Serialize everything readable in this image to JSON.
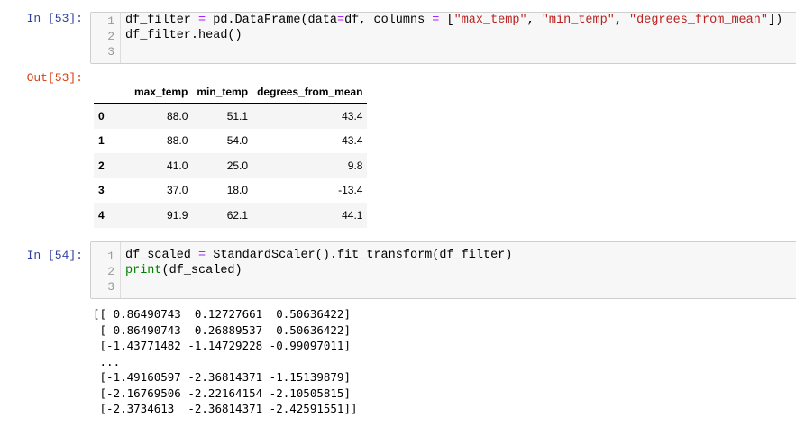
{
  "cells": [
    {
      "in_prompt": "In [53]:",
      "line_numbers": [
        "1",
        "2",
        "3"
      ],
      "code": {
        "l1_a": "df_filter ",
        "l1_eq": "=",
        "l1_b": " pd.DataFrame(data",
        "l1_eq2": "=",
        "l1_c": "df, columns ",
        "l1_eq3": "=",
        "l1_d": " [",
        "s1": "\"max_temp\"",
        "sep1": ", ",
        "s2": "\"min_temp\"",
        "sep2": ", ",
        "s3": "\"degrees_from_mean\"",
        "l1_e": "])",
        "l2": "df_filter.head()"
      },
      "out_prompt": "Out[53]:",
      "table": {
        "columns": [
          "max_temp",
          "min_temp",
          "degrees_from_mean"
        ],
        "rows": [
          {
            "index": "0",
            "values": [
              "88.0",
              "51.1",
              "43.4"
            ]
          },
          {
            "index": "1",
            "values": [
              "88.0",
              "54.0",
              "43.4"
            ]
          },
          {
            "index": "2",
            "values": [
              "41.0",
              "25.0",
              "9.8"
            ]
          },
          {
            "index": "3",
            "values": [
              "37.0",
              "18.0",
              "-13.4"
            ]
          },
          {
            "index": "4",
            "values": [
              "91.9",
              "62.1",
              "44.1"
            ]
          }
        ]
      }
    },
    {
      "in_prompt": "In [54]:",
      "line_numbers": [
        "1",
        "2",
        "3"
      ],
      "code": {
        "l1_a": "df_scaled ",
        "l1_eq": "=",
        "l1_b": " StandardScaler().fit_transform(df_filter)",
        "l2_kw": "print",
        "l2_b": "(df_scaled)"
      },
      "output": "[[ 0.86490743  0.12727661  0.50636422]\n [ 0.86490743  0.26889537  0.50636422]\n [-1.43771482 -1.14729228 -0.99097011]\n ...\n [-1.49160597 -2.36814371 -1.15139879]\n [-2.16769506 -2.22164154 -2.10505815]\n [-2.3734613  -2.36814371 -2.42591551]]"
    }
  ]
}
